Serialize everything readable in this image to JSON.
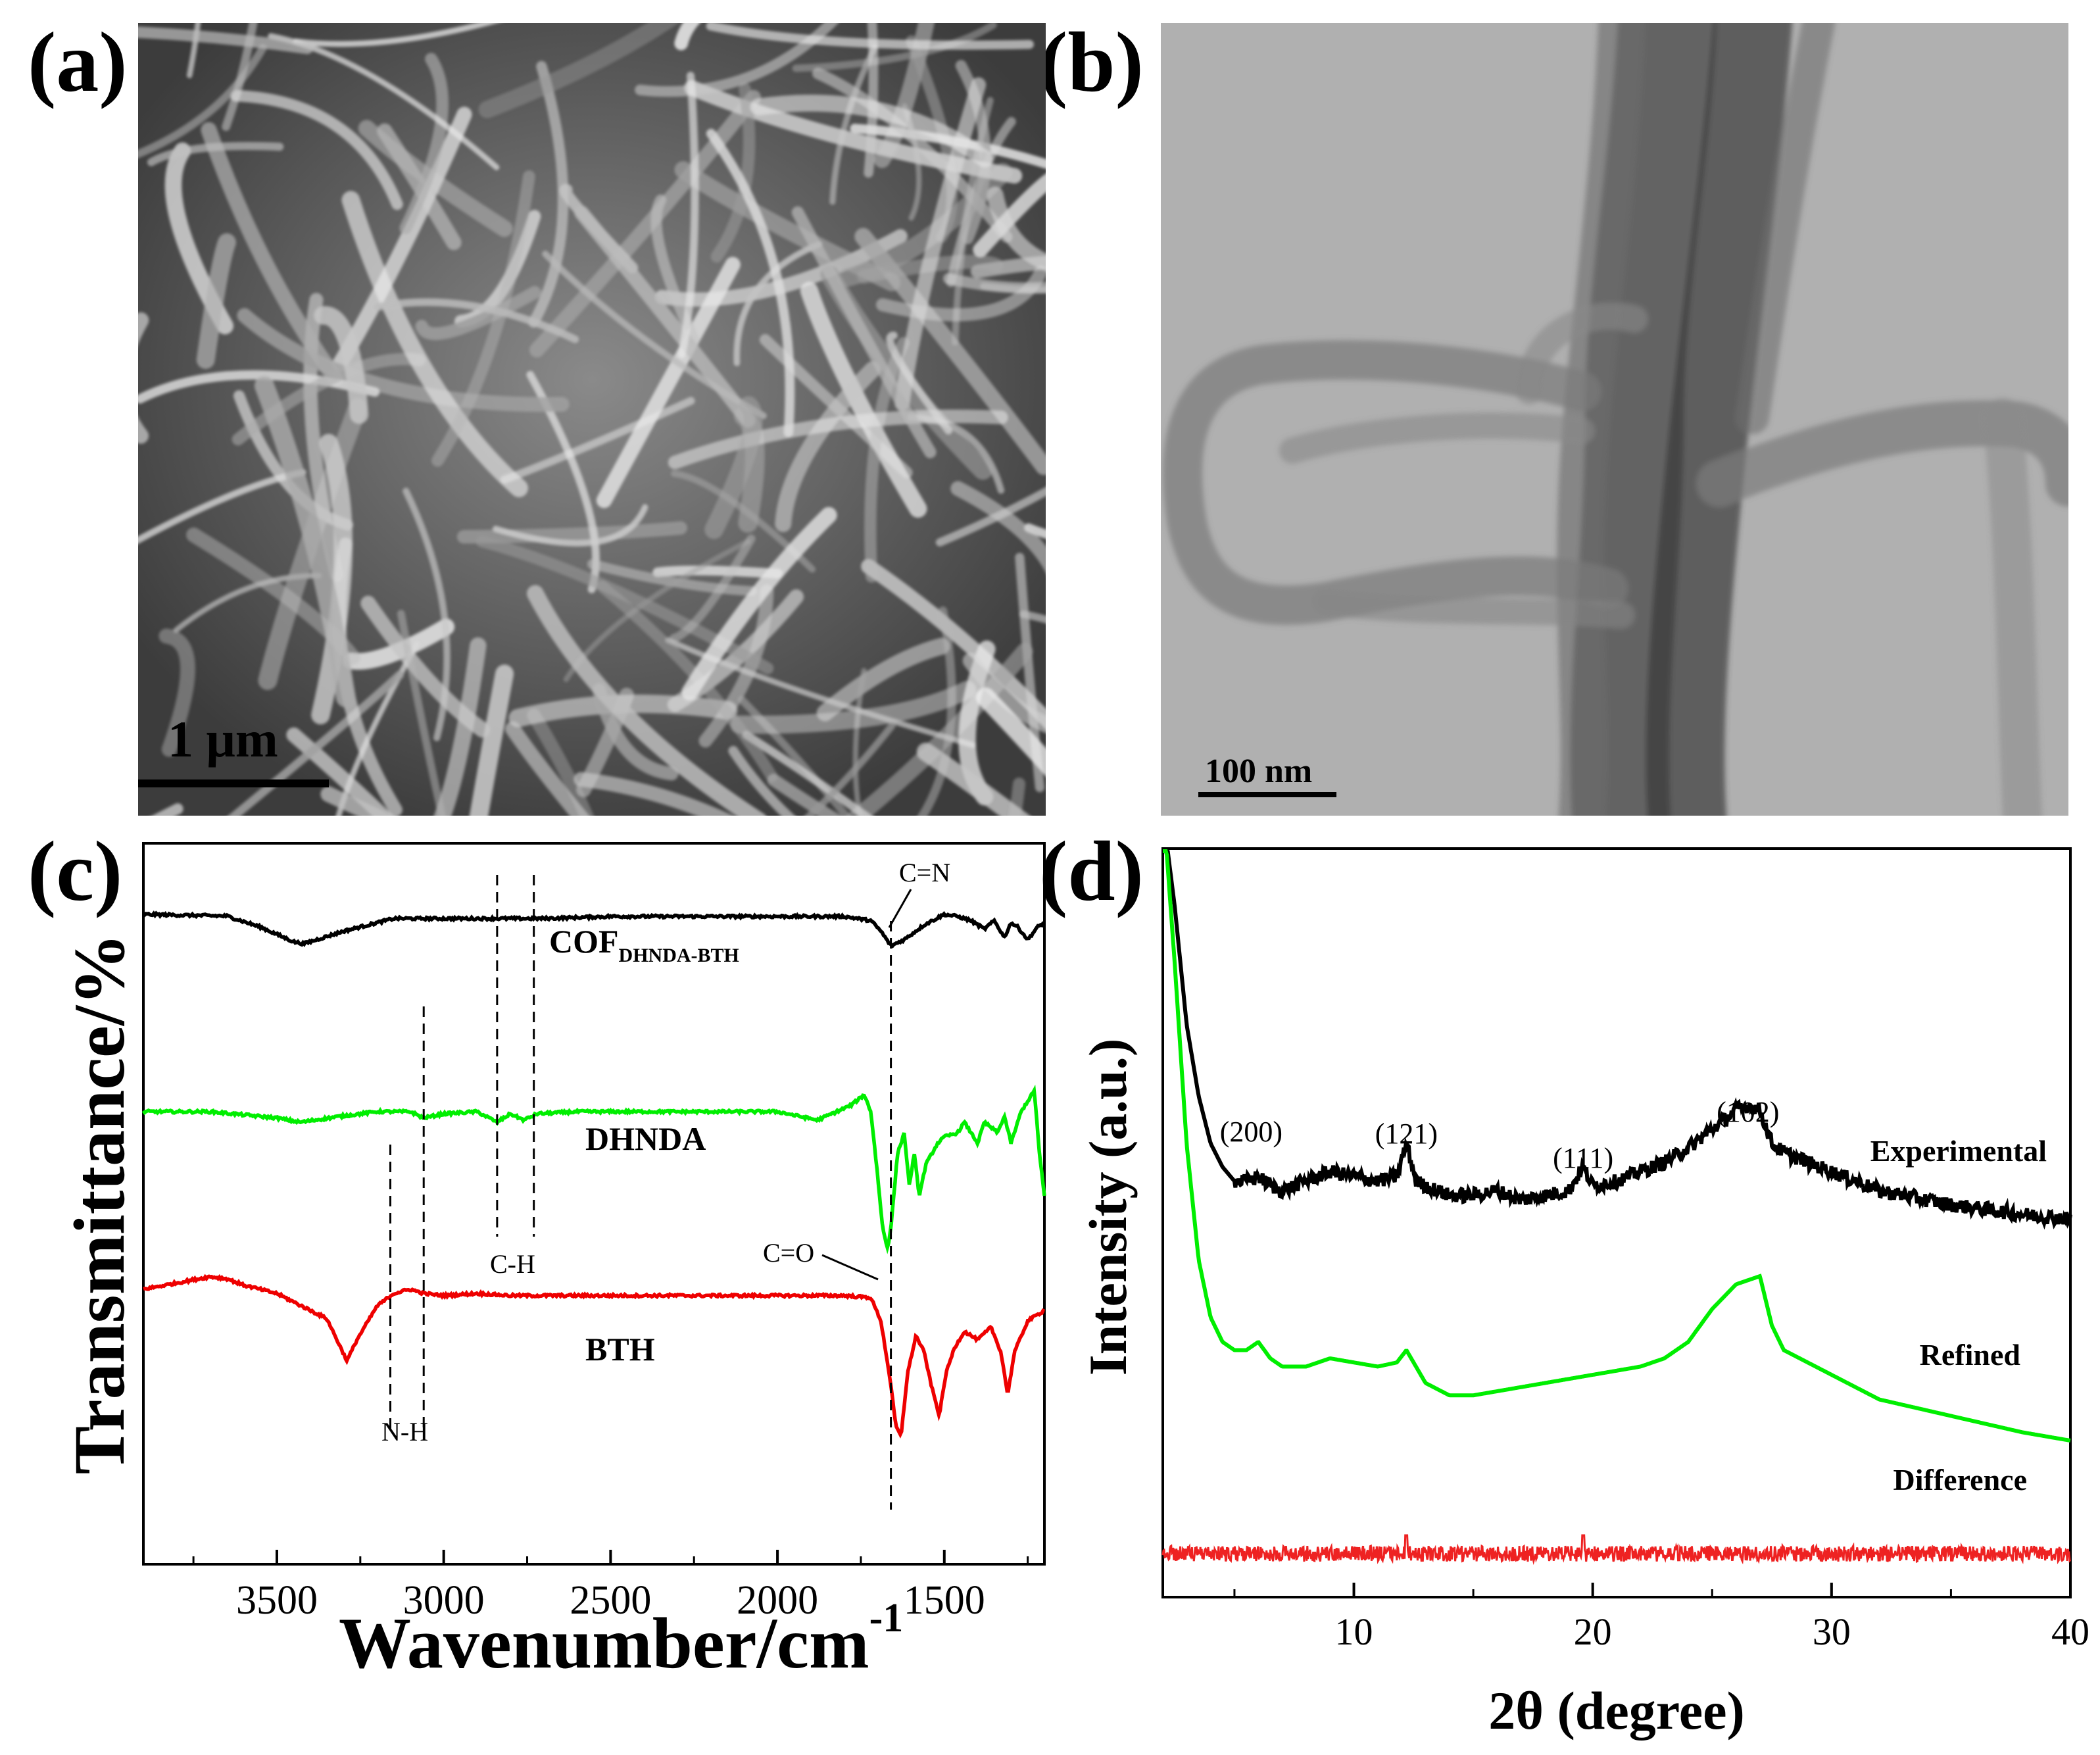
{
  "panels": {
    "a": {
      "letter": "(a)",
      "scale_bar": "1 μm"
    },
    "b": {
      "letter": "(b)",
      "scale_bar": "100 nm"
    },
    "c": {
      "letter": "(c)"
    },
    "d": {
      "letter": "(d)"
    }
  },
  "chart_data": [
    {
      "id": "c",
      "type": "line",
      "xlabel": "Wavenumber/cm",
      "xlabel_superscript": "-1",
      "ylabel": "Transmittance/%",
      "xlim": [
        3900,
        1200
      ],
      "x_ticks": [
        3500,
        3000,
        2500,
        2000,
        1500
      ],
      "y_ticks_shown": false,
      "grid": false,
      "series": [
        {
          "name": "COF",
          "subscript": "DHNDA-BTH",
          "color": "#000000",
          "offset": 0,
          "x": [
            3900,
            3750,
            3650,
            3550,
            3450,
            3420,
            3300,
            3150,
            3050,
            2900,
            2700,
            2500,
            2000,
            1800,
            1720,
            1690,
            1660,
            1620,
            1560,
            1500,
            1460,
            1420,
            1380,
            1350,
            1320,
            1300,
            1280,
            1250,
            1220,
            1200
          ],
          "y": [
            0,
            -0.5,
            -0.8,
            -6,
            -13,
            -14,
            -8,
            -2,
            -2,
            -2,
            -2,
            -1,
            -1,
            -1,
            -3,
            -8,
            -15,
            -12,
            -5,
            0,
            -1,
            -3,
            -7,
            -3,
            -11,
            -4,
            -6,
            -12,
            -6,
            -4
          ]
        },
        {
          "name": "DHNDA",
          "color": "#00ee00",
          "offset": -76,
          "x": [
            3900,
            3700,
            3500,
            3430,
            3300,
            3200,
            3100,
            3060,
            3000,
            2900,
            2840,
            2800,
            2760,
            2720,
            2600,
            2000,
            1880,
            1780,
            1740,
            1720,
            1700,
            1685,
            1670,
            1660,
            1640,
            1620,
            1605,
            1590,
            1575,
            1555,
            1520,
            1500,
            1460,
            1440,
            1400,
            1380,
            1340,
            1320,
            1300,
            1270,
            1250,
            1230,
            1215,
            1200
          ],
          "y": [
            0,
            0,
            -3,
            -5,
            -2,
            0,
            0,
            -3,
            -1,
            0,
            -5,
            -1,
            -4,
            -1,
            0,
            0,
            -4,
            3,
            8,
            0,
            -30,
            -55,
            -65,
            -55,
            -20,
            -10,
            -35,
            -20,
            -40,
            -25,
            -15,
            -12,
            -10,
            -5,
            -15,
            -5,
            -10,
            -2,
            -15,
            0,
            5,
            10,
            -20,
            -40
          ]
        },
        {
          "name": "BTH",
          "color": "#ee0000",
          "offset": -150,
          "x": [
            3900,
            3800,
            3700,
            3650,
            3600,
            3500,
            3400,
            3350,
            3320,
            3290,
            3260,
            3200,
            3150,
            3100,
            3060,
            3000,
            2900,
            2800,
            2500,
            2000,
            1800,
            1720,
            1690,
            1665,
            1645,
            1630,
            1610,
            1585,
            1560,
            1540,
            1515,
            1495,
            1470,
            1440,
            1400,
            1360,
            1330,
            1310,
            1290,
            1250,
            1200
          ],
          "y": [
            0,
            3,
            6,
            5,
            2,
            -2,
            -10,
            -14,
            -24,
            -34,
            -24,
            -8,
            -2,
            0,
            -2,
            -3,
            -2,
            -3,
            -3,
            -3,
            -3,
            -4,
            -15,
            -40,
            -65,
            -70,
            -40,
            -22,
            -30,
            -45,
            -60,
            -40,
            -28,
            -20,
            -24,
            -18,
            -30,
            -50,
            -30,
            -15,
            -10
          ]
        }
      ],
      "annotations": [
        {
          "text": "C=N",
          "x": 1660
        },
        {
          "text": "C-H",
          "x": 2790
        },
        {
          "text": "C=O",
          "x": 1730
        },
        {
          "text": "N-H",
          "x": 3110
        }
      ],
      "dashed_guides": [
        2840,
        2730,
        3060,
        3160,
        1660
      ]
    },
    {
      "id": "d",
      "type": "line",
      "xlabel": "2θ (degree)",
      "ylabel": "Intensity (a.u.)",
      "xlim": [
        2,
        40
      ],
      "x_ticks": [
        10,
        20,
        30,
        40
      ],
      "y_ticks_shown": false,
      "grid": false,
      "series": [
        {
          "name": "Experimental",
          "color": "#000000",
          "x": [
            2,
            2.5,
            3,
            3.5,
            4,
            4.5,
            5,
            5.5,
            6,
            6.5,
            7,
            8,
            9,
            10,
            11,
            11.8,
            12.2,
            12.6,
            13,
            14,
            15,
            16,
            17,
            18,
            19,
            19.6,
            20,
            21,
            22,
            23,
            24,
            25,
            26,
            26.5,
            27,
            27.5,
            28,
            30,
            32,
            35,
            38,
            40
          ],
          "y": [
            100,
            80,
            55,
            40,
            30,
            25,
            22,
            22,
            23,
            21,
            20,
            22,
            24,
            23,
            22,
            23,
            30,
            22,
            21,
            19,
            19,
            20,
            18,
            19,
            20,
            25,
            21,
            22,
            24,
            26,
            29,
            33,
            37,
            38,
            37,
            30,
            28,
            24,
            20,
            17,
            15,
            14
          ]
        },
        {
          "name": "Refined",
          "color": "#00ee00",
          "x": [
            2,
            2.5,
            3,
            3.5,
            4,
            4.5,
            5,
            5.5,
            6,
            6.5,
            7,
            8,
            9,
            10,
            11,
            11.8,
            12.2,
            12.6,
            13,
            14,
            15,
            16,
            17,
            18,
            19,
            20,
            21,
            22,
            23,
            24,
            25,
            26,
            26.5,
            27,
            27.5,
            28,
            30,
            32,
            35,
            38,
            40
          ],
          "y": [
            70,
            50,
            28,
            14,
            7,
            4,
            3,
            3,
            4,
            2,
            1,
            1,
            2,
            1.5,
            1,
            1.5,
            3,
            1,
            -1,
            -2.5,
            -2.5,
            -2,
            -1.5,
            -1,
            -0.5,
            0,
            0.5,
            1,
            2,
            4,
            8,
            11,
            11.5,
            12,
            6,
            3,
            0,
            -3,
            -5,
            -7,
            -8
          ]
        },
        {
          "name": "Difference",
          "color": "#ee2222",
          "noise": true,
          "spikes": [
            12.2,
            19.6
          ]
        }
      ],
      "peak_labels": [
        {
          "text": "(200)",
          "x": 5.7
        },
        {
          "text": "(121)",
          "x": 12.2
        },
        {
          "text": "(111)",
          "x": 19.6
        },
        {
          "text": "(102)",
          "x": 26.5
        }
      ]
    }
  ]
}
